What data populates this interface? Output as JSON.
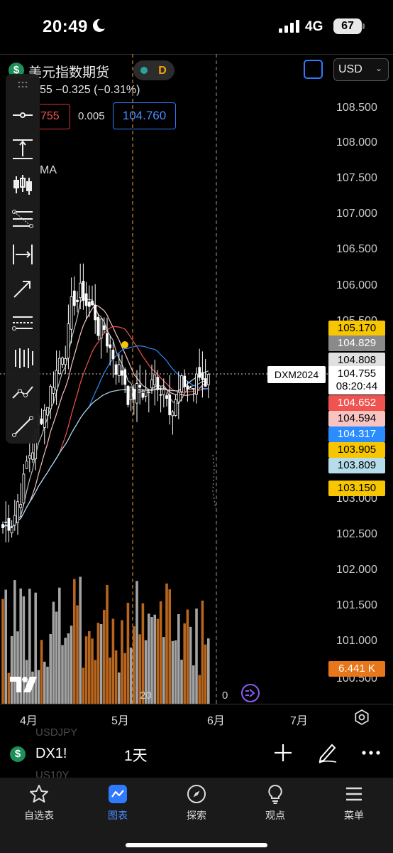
{
  "status_bar": {
    "time": "20:49",
    "network": "4G",
    "battery": "67"
  },
  "header": {
    "title": "美元指数期货",
    "status_letter": "D",
    "currency": "USD",
    "change_text": "55  −0.325 (−0.31%)",
    "bid": "755",
    "spread": "0.005",
    "ask": "104.760",
    "indicator_label": "MA"
  },
  "price_axis": {
    "labels": [
      "108.500",
      "108.000",
      "107.500",
      "107.000",
      "106.500",
      "106.000",
      "105.500",
      "103.000",
      "102.500",
      "102.000",
      "101.500",
      "101.000",
      "100.500"
    ]
  },
  "price_tags": [
    {
      "value": "105.170",
      "bg": "#f7c600",
      "fg": "#000000"
    },
    {
      "value": "104.829",
      "bg": "#8a8a8a",
      "fg": "#ffffff"
    },
    {
      "value": "104.808",
      "bg": "#e0e0e0",
      "fg": "#000000"
    },
    {
      "value": "104.755",
      "bg": "#ffffff",
      "fg": "#000000",
      "time": "08:20:44"
    },
    {
      "value": "104.652",
      "bg": "#f05350",
      "fg": "#ffffff"
    },
    {
      "value": "104.594",
      "bg": "#f8c4c2",
      "fg": "#000000"
    },
    {
      "value": "104.317",
      "bg": "#2b8cff",
      "fg": "#ffffff"
    },
    {
      "value": "103.905",
      "bg": "#f7c600",
      "fg": "#000000"
    },
    {
      "value": "103.809",
      "bg": "#b4dcea",
      "fg": "#000000"
    },
    {
      "value": "103.150",
      "bg": "#f7c600",
      "fg": "#000000"
    }
  ],
  "compare_label": "DXM2024",
  "volume_tag": "6.441 K",
  "time_axis": {
    "labels": [
      "4月",
      "5月",
      "6月",
      "7月"
    ],
    "marker_day": "20",
    "marker_zero": "0"
  },
  "ghost_symbols": [
    "USDJPY",
    "US10Y"
  ],
  "symbol_bar": {
    "code": "DX1!",
    "interval": "1天"
  },
  "tabs": [
    {
      "label": "自选表",
      "icon": "star-icon"
    },
    {
      "label": "图表",
      "icon": "chart-icon"
    },
    {
      "label": "探索",
      "icon": "compass-icon"
    },
    {
      "label": "观点",
      "icon": "lightbulb-icon"
    },
    {
      "label": "菜单",
      "icon": "menu-icon"
    }
  ],
  "active_tab": "图表",
  "colors": {
    "accent": "#2f7bff",
    "up": "#ffffff",
    "down": "#ffffff",
    "volume_up": "#a3a3a3",
    "volume_down": "#b8651e"
  }
}
